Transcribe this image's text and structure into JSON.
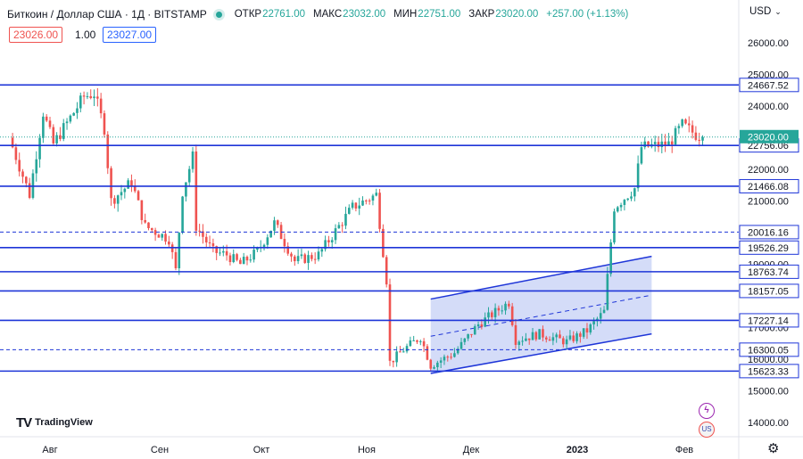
{
  "header": {
    "symbol": "Биткоин / Доллар США · 1Д · BITSTAMP",
    "open_label": "ОТКР",
    "open_value": "22761.00",
    "high_label": "МАКС",
    "high_value": "23032.00",
    "low_label": "МИН",
    "low_value": "22751.00",
    "close_label": "ЗАКР",
    "close_value": "23020.00",
    "change": "+257.00 (+1.13%)",
    "bid": "23026.00",
    "spread": "1.00",
    "ask": "23027.00",
    "currency": "USD"
  },
  "logo_text": "TradingView",
  "colors": {
    "up": "#26a69a",
    "down": "#ef5350",
    "level_line": "#1e35d8",
    "channel_fill": "#c5d0f5",
    "label_bg": "#ffffff",
    "label_border": "#1e35d8"
  },
  "chart_data": {
    "type": "candlestick",
    "ylim": [
      13500,
      27200
    ],
    "x_tick_labels": [
      "Авг",
      "Сен",
      "Окт",
      "Ноя",
      "Дек",
      "2023",
      "Фев"
    ],
    "y_tick_labels": [
      "14000.00",
      "15000.00",
      "16000.00",
      "17000.00",
      "19000.00",
      "21000.00",
      "22000.00",
      "24000.00",
      "25000.00",
      "26000.00"
    ],
    "last_price": "23020.00",
    "horizontal_levels_solid": [
      {
        "label": "24667.52",
        "value": 24667.52
      },
      {
        "label": "22756.06",
        "value": 22756.06
      },
      {
        "label": "21466.08",
        "value": 21466.08
      },
      {
        "label": "19526.29",
        "value": 19526.29
      },
      {
        "label": "18763.74",
        "value": 18763.74
      },
      {
        "label": "18157.05",
        "value": 18157.05
      },
      {
        "label": "17227.14",
        "value": 17227.14
      },
      {
        "label": "15623.33",
        "value": 15623.33
      }
    ],
    "horizontal_levels_dashed": [
      {
        "label": "20016.16",
        "value": 20016.16
      },
      {
        "label": "16300.05",
        "value": 16300.05
      }
    ],
    "channel": {
      "start_date": "2022-11-21",
      "end_date": "2023-01-25",
      "upper_start": 17900,
      "upper_end": 19250,
      "lower_start": 15550,
      "lower_end": 16800
    },
    "keypoints": [
      [
        "2022-07-20",
        23000
      ],
      [
        "2022-07-26",
        21200
      ],
      [
        "2022-07-30",
        23800
      ],
      [
        "2022-08-02",
        22800
      ],
      [
        "2022-08-08",
        23800
      ],
      [
        "2022-08-11",
        24300
      ],
      [
        "2022-08-14",
        24400
      ],
      [
        "2022-08-17",
        23300
      ],
      [
        "2022-08-19",
        21000
      ],
      [
        "2022-08-25",
        21600
      ],
      [
        "2022-08-29",
        20200
      ],
      [
        "2022-09-05",
        19800
      ],
      [
        "2022-09-07",
        18800
      ],
      [
        "2022-09-09",
        21300
      ],
      [
        "2022-09-12",
        22400
      ],
      [
        "2022-09-13",
        20200
      ],
      [
        "2022-09-18",
        19400
      ],
      [
        "2022-09-22",
        19300
      ],
      [
        "2022-09-26",
        19000
      ],
      [
        "2022-10-01",
        19400
      ],
      [
        "2022-10-06",
        20300
      ],
      [
        "2022-10-12",
        19100
      ],
      [
        "2022-10-19",
        19300
      ],
      [
        "2022-10-25",
        20200
      ],
      [
        "2022-10-29",
        20800
      ],
      [
        "2022-11-05",
        21200
      ],
      [
        "2022-11-08",
        18500
      ],
      [
        "2022-11-09",
        15900
      ],
      [
        "2022-11-13",
        16300
      ],
      [
        "2022-11-18",
        16700
      ],
      [
        "2022-11-21",
        15800
      ],
      [
        "2022-11-28",
        16200
      ],
      [
        "2022-12-05",
        17100
      ],
      [
        "2022-12-14",
        17800
      ],
      [
        "2022-12-16",
        16600
      ],
      [
        "2022-12-23",
        16800
      ],
      [
        "2022-12-31",
        16550
      ],
      [
        "2023-01-06",
        16900
      ],
      [
        "2023-01-11",
        17500
      ],
      [
        "2023-01-14",
        20800
      ],
      [
        "2023-01-20",
        21400
      ],
      [
        "2023-01-22",
        22700
      ],
      [
        "2023-01-30",
        22800
      ],
      [
        "2023-02-03",
        23400
      ],
      [
        "2023-02-07",
        23100
      ],
      [
        "2023-02-09",
        23020
      ]
    ]
  }
}
